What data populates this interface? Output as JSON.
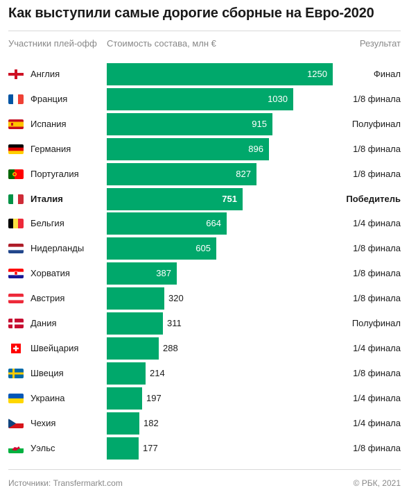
{
  "title": "Как выступили самые дорогие сборные на Евро-2020",
  "headers": {
    "country": "Участники плей-офф",
    "value": "Стоимость состава, млн €",
    "result": "Результат"
  },
  "colors": {
    "bar": "#00a86b",
    "text": "#1a1a1a",
    "muted": "#888888"
  },
  "chart_data": {
    "type": "bar",
    "orientation": "horizontal",
    "title": "Как выступили самые дорогие сборные на Евро-2020",
    "xlabel": "Стоимость состава, млн €",
    "ylabel": "Участники плей-офф",
    "xlim": [
      0,
      1250
    ],
    "highlight": "Италия",
    "categories": [
      "Англия",
      "Франция",
      "Испания",
      "Германия",
      "Португалия",
      "Италия",
      "Бельгия",
      "Нидерланды",
      "Хорватия",
      "Австрия",
      "Дания",
      "Швейцария",
      "Швеция",
      "Украина",
      "Чехия",
      "Уэльс"
    ],
    "values": [
      1250,
      1030,
      915,
      896,
      827,
      751,
      664,
      605,
      387,
      320,
      311,
      288,
      214,
      197,
      182,
      177
    ],
    "results": [
      "Финал",
      "1/8 финала",
      "Полуфинал",
      "1/8 финала",
      "1/8 финала",
      "Победитель",
      "1/4 финала",
      "1/8 финала",
      "1/8 финала",
      "1/8 финала",
      "Полуфинал",
      "1/4 финала",
      "1/8 финала",
      "1/4 финала",
      "1/4 финала",
      "1/8 финала"
    ],
    "flags": [
      "england-flag-icon",
      "france-flag-icon",
      "spain-flag-icon",
      "germany-flag-icon",
      "portugal-flag-icon",
      "italy-flag-icon",
      "belgium-flag-icon",
      "netherlands-flag-icon",
      "croatia-flag-icon",
      "austria-flag-icon",
      "denmark-flag-icon",
      "switzerland-flag-icon",
      "sweden-flag-icon",
      "ukraine-flag-icon",
      "czechia-flag-icon",
      "wales-flag-icon"
    ]
  },
  "footer": {
    "source": "Источники: Transfermarkt.com",
    "copyright": "© РБК, 2021"
  }
}
